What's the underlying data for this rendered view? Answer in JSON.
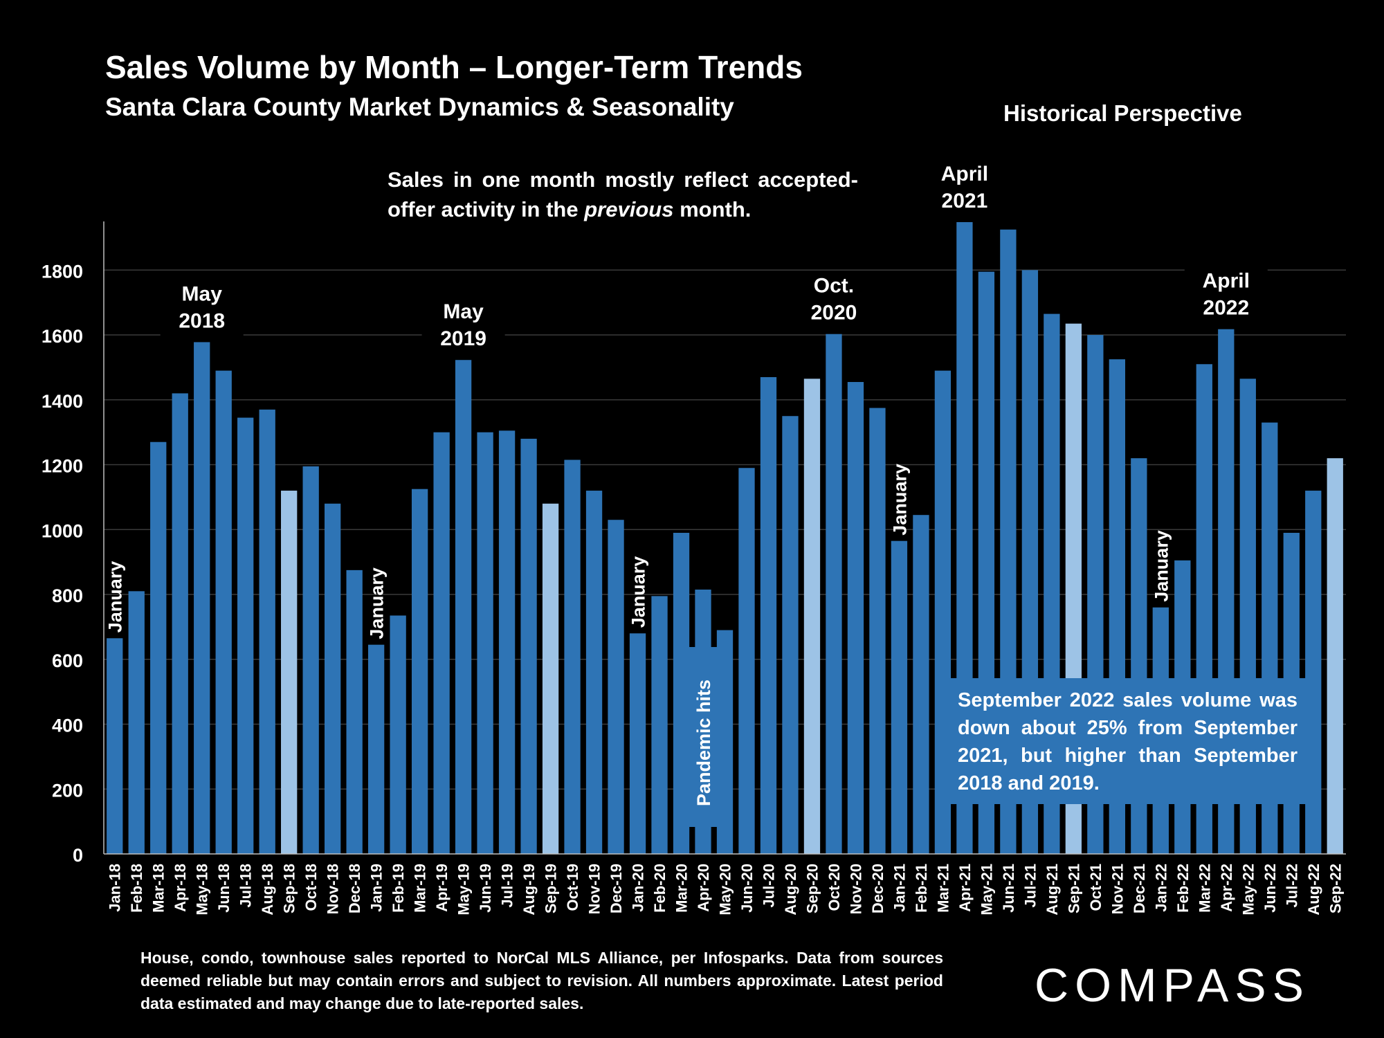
{
  "header": {
    "title": "Sales Volume by Month – Longer-Term Trends",
    "subtitle": "Santa Clara County Market Dynamics & Seasonality",
    "perspective": "Historical Perspective"
  },
  "note_top": {
    "text_before": "Sales in one month mostly reflect accepted-offer activity in the ",
    "emphasis": "previous",
    "text_after": " month."
  },
  "note_box": "September 2022 sales volume was down about 25% from September 2021, but higher than September 2018 and 2019.",
  "footer": "House, condo, townhouse sales reported to NorCal MLS Alliance, per Infosparks. Data from sources deemed reliable but may contain errors and subject to revision. All numbers approximate. Latest period data estimated and may change due to late-reported sales.",
  "logo": "COMPASS",
  "colors": {
    "bar": "#2e74b5",
    "highlight": "#9dc3e6",
    "background": "#000000",
    "grid": "#3a3a3a"
  },
  "chart_data": {
    "type": "bar",
    "categories": [
      "Jan-18",
      "Feb-18",
      "Mar-18",
      "Apr-18",
      "May-18",
      "Jun-18",
      "Jul-18",
      "Aug-18",
      "Sep-18",
      "Oct-18",
      "Nov-18",
      "Dec-18",
      "Jan-19",
      "Feb-19",
      "Mar-19",
      "Apr-19",
      "May-19",
      "Jun-19",
      "Jul-19",
      "Aug-19",
      "Sep-19",
      "Oct-19",
      "Nov-19",
      "Dec-19",
      "Jan-20",
      "Feb-20",
      "Mar-20",
      "Apr-20",
      "May-20",
      "Jun-20",
      "Jul-20",
      "Aug-20",
      "Sep-20",
      "Oct-20",
      "Nov-20",
      "Dec-20",
      "Jan-21",
      "Feb-21",
      "Mar-21",
      "Apr-21",
      "May-21",
      "Jun-21",
      "Jul-21",
      "Aug-21",
      "Sep-21",
      "Oct-21",
      "Nov-21",
      "Dec-21",
      "Jan-22",
      "Feb-22",
      "Mar-22",
      "Apr-22",
      "May-22",
      "Jun-22",
      "Jul-22",
      "Aug-22",
      "Sep-22"
    ],
    "values": [
      665,
      810,
      1270,
      1420,
      1580,
      1490,
      1345,
      1370,
      1120,
      1195,
      1080,
      875,
      645,
      735,
      1125,
      1300,
      1525,
      1300,
      1305,
      1280,
      1080,
      1215,
      1120,
      1030,
      680,
      795,
      990,
      815,
      690,
      1190,
      1470,
      1350,
      1465,
      1605,
      1455,
      1375,
      965,
      1045,
      1490,
      1950,
      1795,
      1925,
      1800,
      1665,
      1635,
      1600,
      1525,
      1220,
      760,
      905,
      1510,
      1620,
      1465,
      1330,
      990,
      1120,
      1220
    ],
    "highlighted": [
      "Sep-18",
      "Sep-19",
      "Sep-20",
      "Sep-21",
      "Sep-22"
    ],
    "ylim": [
      0,
      1950
    ],
    "yticks": [
      0,
      200,
      400,
      600,
      800,
      1000,
      1200,
      1400,
      1600,
      1800
    ],
    "grid": true,
    "annotations": [
      {
        "label": "May 2018",
        "lines": [
          "May",
          "2018"
        ],
        "category": "May-18",
        "style": "above"
      },
      {
        "label": "May 2019",
        "lines": [
          "May",
          "2019"
        ],
        "category": "May-19",
        "style": "above"
      },
      {
        "label": "Oct. 2020",
        "lines": [
          "Oct.",
          "2020"
        ],
        "category": "Oct-20",
        "style": "above"
      },
      {
        "label": "April 2021",
        "lines": [
          "April",
          "2021"
        ],
        "category": "Apr-21",
        "style": "above"
      },
      {
        "label": "April 2022",
        "lines": [
          "April",
          "2022"
        ],
        "category": "Apr-22",
        "style": "above"
      },
      {
        "label": "January",
        "lines": [
          "January"
        ],
        "category": "Jan-18",
        "style": "vertical"
      },
      {
        "label": "January",
        "lines": [
          "January"
        ],
        "category": "Jan-19",
        "style": "vertical"
      },
      {
        "label": "January",
        "lines": [
          "January"
        ],
        "category": "Jan-20",
        "style": "vertical"
      },
      {
        "label": "January",
        "lines": [
          "January"
        ],
        "category": "Jan-21",
        "style": "vertical"
      },
      {
        "label": "January",
        "lines": [
          "January"
        ],
        "category": "Jan-22",
        "style": "vertical"
      },
      {
        "label": "Pandemic hits",
        "lines": [
          "Pandemic hits"
        ],
        "category": "Apr-20",
        "style": "vertical-box"
      }
    ]
  }
}
